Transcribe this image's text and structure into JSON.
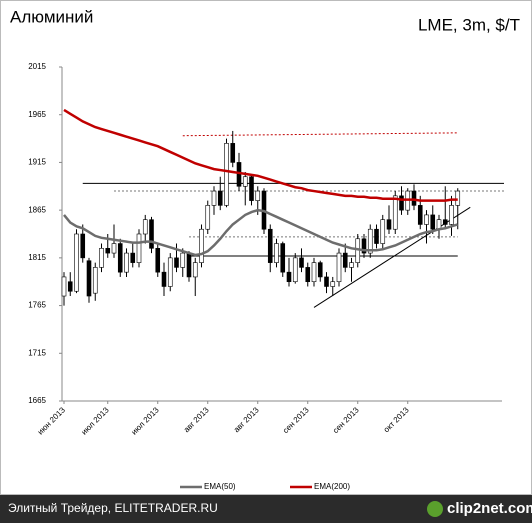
{
  "chart_data": {
    "type": "candlestick",
    "title": "Алюминий",
    "subtitle": "LME, 3m, $/T",
    "categories": [
      "июн 2013",
      null,
      null,
      null,
      null,
      null,
      null,
      "июл 2013",
      null,
      null,
      null,
      null,
      null,
      null,
      null,
      "июл 2013",
      null,
      null,
      null,
      null,
      null,
      null,
      null,
      "авг 2013",
      null,
      null,
      null,
      null,
      null,
      null,
      null,
      "авг 2013",
      null,
      null,
      null,
      null,
      null,
      null,
      null,
      "сен 2013",
      null,
      null,
      null,
      null,
      null,
      null,
      null,
      "сен 2013",
      null,
      null,
      null,
      null,
      null,
      null,
      null,
      "окт 2013",
      null,
      null,
      null,
      null,
      null,
      null,
      null,
      null
    ],
    "candles": {
      "open": [
        1775,
        1790,
        1780,
        1840,
        1812,
        1778,
        1805,
        1825,
        1820,
        1830,
        1800,
        1820,
        1810,
        1840,
        1855,
        1825,
        1800,
        1785,
        1815,
        1805,
        1820,
        1795,
        1810,
        1845,
        1870,
        1885,
        1870,
        1935,
        1915,
        1890,
        1900,
        1875,
        1885,
        1845,
        1810,
        1830,
        1800,
        1790,
        1815,
        1805,
        1790,
        1810,
        1795,
        1785,
        1790,
        1820,
        1805,
        1810,
        1835,
        1820,
        1845,
        1830,
        1855,
        1845,
        1880,
        1865,
        1885,
        1870,
        1850,
        1860,
        1845,
        1855,
        1850,
        1870
      ],
      "high": [
        1800,
        1800,
        1845,
        1850,
        1815,
        1810,
        1830,
        1840,
        1850,
        1835,
        1825,
        1830,
        1845,
        1860,
        1858,
        1830,
        1810,
        1820,
        1830,
        1825,
        1822,
        1815,
        1850,
        1875,
        1890,
        1900,
        1940,
        1948,
        1925,
        1905,
        1902,
        1890,
        1888,
        1850,
        1835,
        1832,
        1815,
        1820,
        1825,
        1810,
        1815,
        1812,
        1800,
        1795,
        1825,
        1830,
        1815,
        1840,
        1840,
        1850,
        1850,
        1860,
        1870,
        1885,
        1890,
        1888,
        1892,
        1880,
        1865,
        1870,
        1860,
        1890,
        1880,
        1888
      ],
      "low": [
        1765,
        1775,
        1778,
        1810,
        1768,
        1770,
        1800,
        1815,
        1815,
        1795,
        1795,
        1805,
        1805,
        1830,
        1820,
        1795,
        1775,
        1780,
        1800,
        1795,
        1790,
        1775,
        1805,
        1840,
        1860,
        1865,
        1868,
        1910,
        1885,
        1870,
        1870,
        1860,
        1840,
        1800,
        1805,
        1795,
        1785,
        1788,
        1800,
        1785,
        1785,
        1790,
        1778,
        1775,
        1785,
        1800,
        1790,
        1805,
        1815,
        1815,
        1825,
        1825,
        1840,
        1840,
        1860,
        1860,
        1865,
        1845,
        1830,
        1840,
        1835,
        1845,
        1838,
        1845
      ],
      "close": [
        1795,
        1780,
        1840,
        1815,
        1775,
        1805,
        1825,
        1820,
        1830,
        1800,
        1820,
        1810,
        1840,
        1855,
        1825,
        1800,
        1785,
        1815,
        1805,
        1820,
        1795,
        1810,
        1845,
        1870,
        1885,
        1870,
        1935,
        1915,
        1890,
        1900,
        1875,
        1885,
        1845,
        1810,
        1830,
        1800,
        1790,
        1815,
        1805,
        1790,
        1810,
        1795,
        1785,
        1790,
        1820,
        1805,
        1810,
        1835,
        1820,
        1845,
        1830,
        1855,
        1845,
        1880,
        1865,
        1885,
        1870,
        1850,
        1860,
        1845,
        1855,
        1850,
        1870,
        1885
      ],
      "up_color": "#ffffff",
      "down_color": "#000000"
    },
    "series": [
      {
        "name": "EMA(50)",
        "color": "#6d6d6d",
        "values": [
          1860,
          1852,
          1848,
          1846,
          1842,
          1838,
          1836,
          1835,
          1834,
          1833,
          1832,
          1831,
          1831,
          1832,
          1832,
          1830,
          1828,
          1826,
          1824,
          1822,
          1820,
          1818,
          1819,
          1822,
          1828,
          1835,
          1843,
          1850,
          1855,
          1860,
          1863,
          1865,
          1864,
          1861,
          1858,
          1855,
          1852,
          1849,
          1846,
          1843,
          1840,
          1837,
          1834,
          1831,
          1829,
          1827,
          1825,
          1824,
          1823,
          1823,
          1823,
          1824,
          1826,
          1828,
          1831,
          1834,
          1837,
          1840,
          1842,
          1843,
          1845,
          1846,
          1848,
          1850
        ]
      },
      {
        "name": "EMA(200)",
        "color": "#c00000",
        "values": [
          1970,
          1966,
          1962,
          1958,
          1955,
          1952,
          1950,
          1948,
          1946,
          1944,
          1942,
          1940,
          1938,
          1936,
          1934,
          1932,
          1929,
          1926,
          1923,
          1920,
          1917,
          1914,
          1912,
          1910,
          1908,
          1907,
          1906,
          1905,
          1904,
          1903,
          1902,
          1901,
          1899,
          1897,
          1895,
          1893,
          1891,
          1889,
          1888,
          1886,
          1885,
          1884,
          1883,
          1882,
          1881,
          1880,
          1880,
          1879,
          1879,
          1878,
          1878,
          1877,
          1877,
          1877,
          1876,
          1876,
          1876,
          1875,
          1875,
          1875,
          1875,
          1875,
          1876,
          1876
        ]
      }
    ],
    "reference_lines": [
      {
        "x": [
          3,
          70.4
        ],
        "y": [
          1893,
          1893
        ],
        "color": "#000000",
        "style": "solid"
      },
      {
        "x": [
          8,
          70.4
        ],
        "y": [
          1885,
          1885
        ],
        "color": "#777777",
        "style": "dotted"
      },
      {
        "x": [
          20,
          63
        ],
        "y": [
          1837,
          1837
        ],
        "color": "#777777",
        "style": "dotted"
      },
      {
        "x": [
          20,
          63
        ],
        "y": [
          1817,
          1817
        ],
        "color": "#000000",
        "style": "solid"
      },
      {
        "x": [
          19,
          63
        ],
        "y": [
          1943,
          1946
        ],
        "color": "#c00000",
        "style": "dotted"
      },
      {
        "x": [
          40,
          65
        ],
        "y": [
          1763,
          1868
        ],
        "color": "#000000",
        "style": "solid"
      }
    ],
    "ylim": [
      1665,
      2015
    ],
    "yticks": [
      1665,
      1715,
      1765,
      1815,
      1865,
      1915,
      1965,
      2015
    ],
    "legend": "bottom"
  },
  "footer": {
    "source": "Элитный Трейдер, ELITETRADER.RU",
    "logo": "clip2net.com"
  }
}
